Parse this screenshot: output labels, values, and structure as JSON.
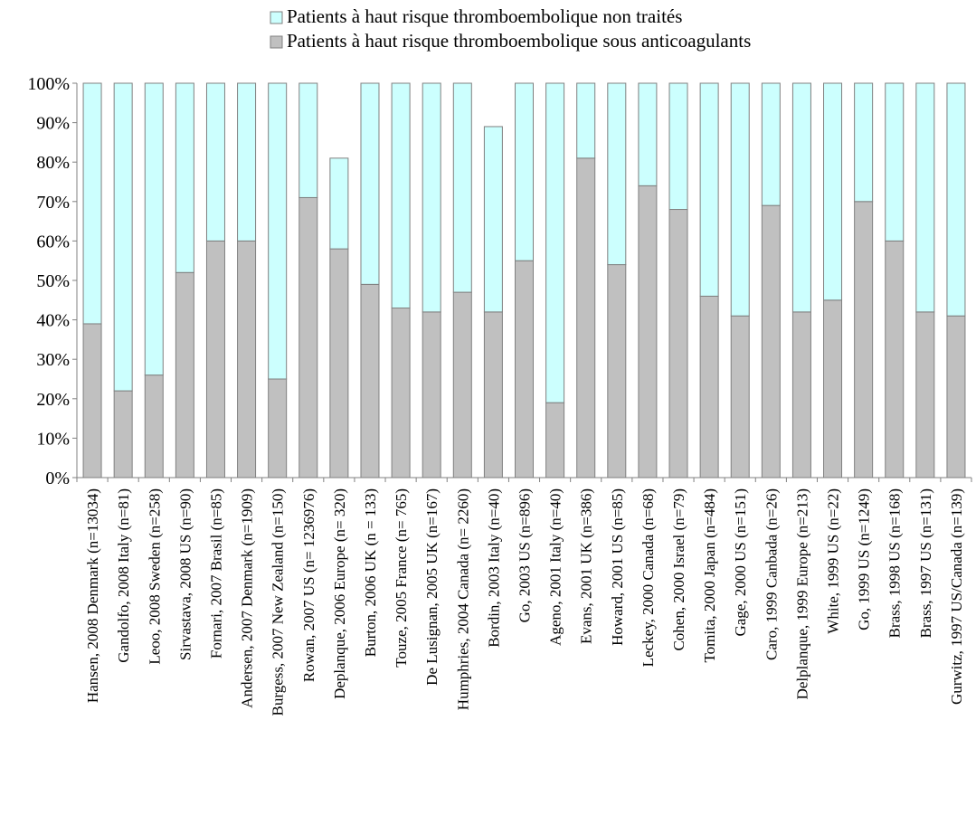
{
  "chart_data": {
    "type": "bar",
    "stacked": true,
    "ylim": [
      0,
      100
    ],
    "yticks": [
      "0%",
      "10%",
      "20%",
      "30%",
      "40%",
      "50%",
      "60%",
      "70%",
      "80%",
      "90%",
      "100%"
    ],
    "grid": false,
    "legend_position": "top",
    "categories": [
      "Hansen, 2008 Denmark (n=13034)",
      "Gandolfo, 2008 Italy (n=81)",
      "Leoo, 2008 Sweden (n=258)",
      "Sirvastava, 2008 US (n=90)",
      "Fornari, 2007 Brasil (n=85)",
      "Andersen, 2007 Denmark (n=1909)",
      "Burgess, 2007 New Zealand (n=150)",
      "Rowan, 2007 US (n= 1236976)",
      "Deplanque, 2006 Europe (n= 320)",
      "Burton, 2006 UK (n = 133)",
      "Touze, 2005 France (n= 765)",
      "De Lusignan, 2005 UK (n=167)",
      "Humphries, 2004 Canada (n= 2260)",
      "Bordin, 2003 Italy (n=40)",
      "Go, 2003 US (n=896)",
      "Ageno, 2001 Italy (n=40)",
      "Evans, 2001 UK (n=386)",
      "Howard, 2001 US (n=85)",
      "Leckey, 2000 Canada (n=68)",
      "Cohen, 2000 Israel (n=79)",
      "Tomita, 2000 Japan (n=484)",
      "Gage, 2000 US (n=151)",
      "Caro, 1999 Canbada (n=26)",
      "Delplanque, 1999 Europe (n=213)",
      "White, 1999 US (n=22)",
      "Go, 1999 US (n=1249)",
      "Brass, 1998 US (n=168)",
      "Brass, 1997 US (n=131)",
      "Gurwitz, 1997 US/Canada (n=139)"
    ],
    "series": [
      {
        "name": "Patients à haut risque thromboembolique sous anticoagulants",
        "color": "#c0c0c0",
        "values": [
          39,
          22,
          26,
          52,
          60,
          60,
          25,
          71,
          58,
          49,
          43,
          42,
          47,
          42,
          55,
          19,
          81,
          54,
          74,
          68,
          46,
          41,
          69,
          42,
          45,
          70,
          60,
          42,
          41
        ]
      },
      {
        "name": "Patients à haut risque thromboembolique non traités",
        "color": "#ccfffe",
        "values": [
          61,
          78,
          74,
          48,
          40,
          40,
          75,
          29,
          23,
          51,
          57,
          58,
          53,
          47,
          45,
          81,
          19,
          46,
          26,
          32,
          54,
          59,
          31,
          58,
          55,
          30,
          40,
          58,
          59
        ]
      }
    ]
  }
}
